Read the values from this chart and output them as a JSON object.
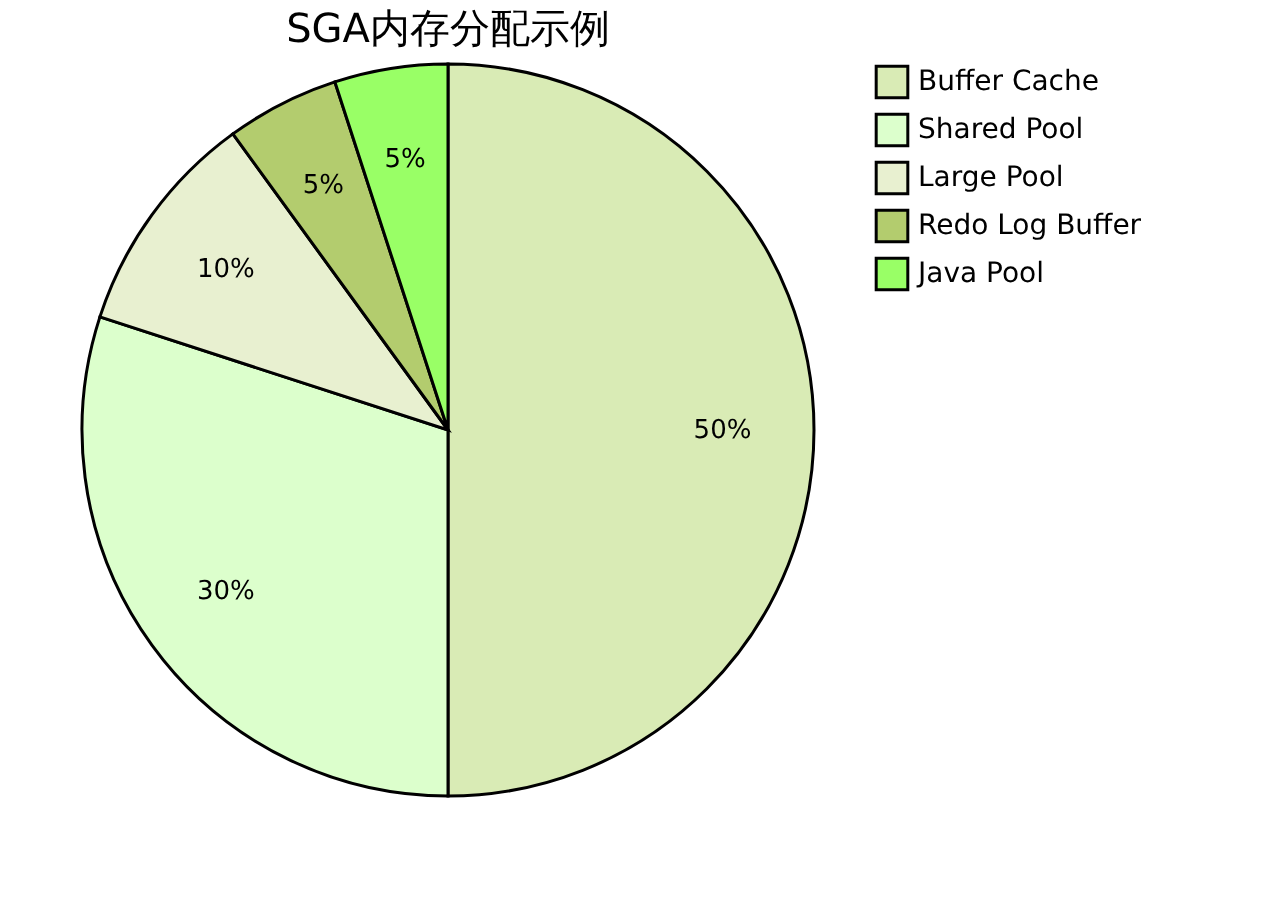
{
  "chart_data": {
    "type": "pie",
    "title": "SGA内存分配示例",
    "categories": [
      "Buffer Cache",
      "Shared Pool",
      "Large Pool",
      "Redo Log Buffer",
      "Java Pool"
    ],
    "values": [
      50,
      30,
      10,
      5,
      5
    ],
    "colors": [
      "#d9ebb5",
      "#dcffcc",
      "#e8f0d0",
      "#b3cc6e",
      "#99ff66"
    ],
    "value_labels": [
      "50%",
      "30%",
      "10%",
      "5%",
      "5%"
    ],
    "legend": "right"
  }
}
